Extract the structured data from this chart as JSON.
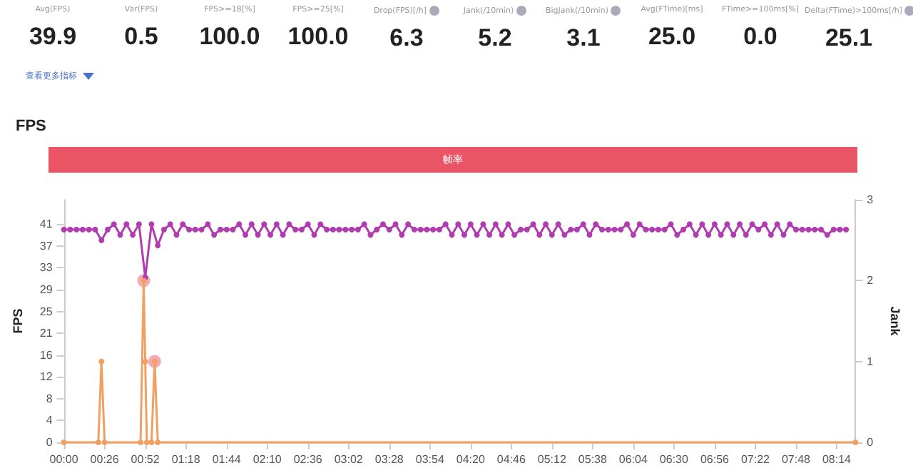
{
  "chart_data": [
    {
      "type": "other",
      "categories": [
        "Avg(FPS)",
        "Var(FPS)",
        "FPS>=18[%]",
        "FPS>=25[%]",
        "Drop(FPS)[/h]",
        "Jank(/10min)",
        "BigJank(/10min)",
        "Avg(FTime)[ms]",
        "FTime>=100ms[%]",
        "Delta(FTime)>100ms[/h]"
      ],
      "value_labels": [
        "39.9",
        "0.5",
        "100.0",
        "100.0",
        "6.3",
        "5.2",
        "3.1",
        "25.0",
        "0.0",
        "25.1"
      ],
      "annotations": [
        "查看更多指标"
      ]
    },
    {
      "type": "line",
      "title": "FPS",
      "subtitle": "帧率",
      "ylabel": "FPS",
      "y2label": "Jank",
      "marker": "circle",
      "line_style": "solid",
      "xlim": [
        0,
        506
      ],
      "xticks": [
        {
          "value": 0,
          "label": "00:00"
        },
        {
          "value": 26,
          "label": "00:26"
        },
        {
          "value": 52,
          "label": "00:52"
        },
        {
          "value": 78,
          "label": "01:18"
        },
        {
          "value": 104,
          "label": "01:44"
        },
        {
          "value": 130,
          "label": "02:10"
        },
        {
          "value": 156,
          "label": "02:36"
        },
        {
          "value": 182,
          "label": "03:02"
        },
        {
          "value": 208,
          "label": "03:28"
        },
        {
          "value": 234,
          "label": "03:54"
        },
        {
          "value": 260,
          "label": "04:20"
        },
        {
          "value": 286,
          "label": "04:46"
        },
        {
          "value": 312,
          "label": "05:12"
        },
        {
          "value": 338,
          "label": "05:38"
        },
        {
          "value": 364,
          "label": "06:04"
        },
        {
          "value": 390,
          "label": "06:30"
        },
        {
          "value": 416,
          "label": "06:56"
        },
        {
          "value": 442,
          "label": "07:22"
        },
        {
          "value": 468,
          "label": "07:48"
        },
        {
          "value": 494,
          "label": "08:14"
        }
      ],
      "ylim": [
        0,
        45.6
      ],
      "yticks": [
        0,
        {
          "value": 4.1,
          "label": "4"
        },
        {
          "value": 8.2,
          "label": "8"
        },
        {
          "value": 12.3,
          "label": "12"
        },
        {
          "value": 16.4,
          "label": "16"
        },
        {
          "value": 20.5,
          "label": "21"
        },
        {
          "value": 24.6,
          "label": "25"
        },
        {
          "value": 28.7,
          "label": "29"
        },
        {
          "value": 32.8,
          "label": "33"
        },
        {
          "value": 36.9,
          "label": "37"
        },
        41
      ],
      "y2lim": [
        0,
        3
      ],
      "y2ticks": [
        0,
        1,
        2,
        3
      ],
      "series": [
        {
          "type": "line",
          "color": "#b03cb0",
          "x": [
            0,
            4,
            8,
            12,
            16,
            20,
            24,
            28,
            32,
            36,
            40,
            44,
            48,
            52,
            56,
            60,
            64,
            68,
            72,
            76,
            80,
            84,
            88,
            92,
            96,
            100,
            104,
            108,
            112,
            116,
            120,
            124,
            128,
            132,
            136,
            140,
            144,
            148,
            152,
            156,
            160,
            164,
            168,
            172,
            176,
            180,
            184,
            188,
            192,
            196,
            200,
            204,
            208,
            212,
            216,
            220,
            224,
            228,
            232,
            236,
            240,
            244,
            248,
            252,
            256,
            260,
            264,
            268,
            272,
            276,
            280,
            284,
            288,
            292,
            296,
            300,
            304,
            308,
            312,
            316,
            320,
            324,
            328,
            332,
            336,
            340,
            344,
            348,
            352,
            356,
            360,
            364,
            368,
            372,
            376,
            380,
            384,
            388,
            392,
            396,
            400,
            404,
            408,
            412,
            416,
            420,
            424,
            428,
            432,
            436,
            440,
            444,
            448,
            452,
            456,
            460,
            464,
            468,
            472,
            476,
            480,
            484,
            488,
            492,
            496,
            500
          ],
          "values": [
            40,
            40,
            40,
            40,
            40,
            40,
            38,
            40,
            41,
            39,
            41,
            39,
            41,
            31,
            41,
            37,
            40,
            41,
            39,
            41,
            40,
            40,
            40,
            41,
            39,
            40,
            40,
            40,
            41,
            39,
            41,
            39,
            41,
            39,
            41,
            39,
            41,
            40,
            40,
            41,
            39,
            41,
            40,
            40,
            40,
            40,
            40,
            40,
            41,
            39,
            40,
            41,
            40,
            41,
            39,
            41,
            40,
            40,
            40,
            40,
            40,
            41,
            39,
            41,
            39,
            41,
            39,
            41,
            39,
            41,
            39,
            41,
            39,
            40,
            40,
            41,
            39,
            41,
            39,
            41,
            39,
            40,
            40,
            41,
            39,
            41,
            40,
            40,
            40,
            40,
            41,
            39,
            41,
            40,
            40,
            40,
            40,
            41,
            39,
            40,
            41,
            39,
            41,
            39,
            41,
            39,
            41,
            39,
            41,
            39,
            41,
            40,
            41,
            39,
            41,
            39,
            41,
            40,
            40,
            40,
            40,
            40,
            39,
            40,
            40,
            40
          ]
        },
        {
          "type": "line",
          "color": "#f0a060",
          "axis": "y2",
          "x": [
            0,
            22,
            24,
            26,
            49,
            51,
            52,
            53,
            56,
            58,
            60,
            506
          ],
          "values": [
            0,
            0,
            1,
            0,
            0,
            2,
            1,
            0,
            0,
            1,
            0,
            0
          ]
        },
        {
          "type": "scatter",
          "color": "#f07080",
          "axis": "y2",
          "x": [
            51,
            58
          ],
          "values": [
            2,
            1
          ]
        }
      ]
    }
  ]
}
